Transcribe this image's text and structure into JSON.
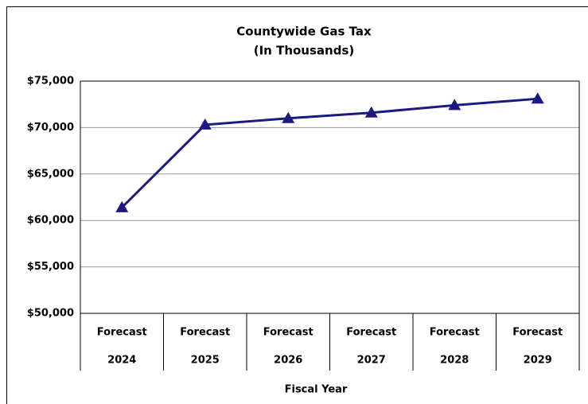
{
  "chart_data": {
    "type": "line",
    "title": [
      "Countywide Gas Tax",
      "(In Thousands)"
    ],
    "x_label": "Fiscal Year",
    "categories": [
      [
        "Forecast",
        "2024"
      ],
      [
        "Forecast",
        "2025"
      ],
      [
        "Forecast",
        "2026"
      ],
      [
        "Forecast",
        "2027"
      ],
      [
        "Forecast",
        "2028"
      ],
      [
        "Forecast",
        "2029"
      ]
    ],
    "series": [
      {
        "name": "Countywide Gas Tax",
        "color": "#1a1a80",
        "values": [
          61400,
          70300,
          71000,
          71600,
          72400,
          73100
        ]
      }
    ],
    "ylim": [
      50000,
      75000
    ],
    "yticks": [
      {
        "value": 50000,
        "label": "$50,000"
      },
      {
        "value": 55000,
        "label": "$55,000"
      },
      {
        "value": 60000,
        "label": "$60,000"
      },
      {
        "value": 65000,
        "label": "$65,000"
      },
      {
        "value": 70000,
        "label": "$70,000"
      },
      {
        "value": 75000,
        "label": "$75,000"
      }
    ],
    "grid": true
  }
}
